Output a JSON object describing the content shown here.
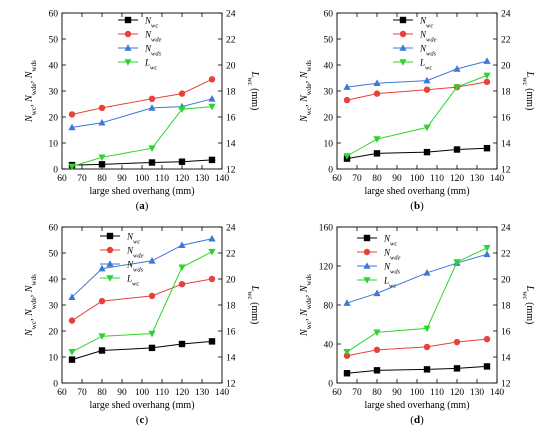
{
  "chart_data": [
    {
      "type": "line",
      "panel_label": "(a)",
      "xlabel": "large shed overhang (mm)",
      "ylabel": "N_wc, N_wde, N_wds",
      "y2label": "L_wc (mm)",
      "x": [
        65,
        80,
        105,
        120,
        135
      ],
      "xlim": [
        60,
        140
      ],
      "xticks": [
        60,
        70,
        80,
        90,
        100,
        110,
        120,
        130,
        140
      ],
      "ylim": [
        0,
        60
      ],
      "yticks": [
        0,
        10,
        20,
        30,
        40,
        50,
        60
      ],
      "y2lim": [
        12,
        24
      ],
      "y2ticks": [
        12,
        14,
        16,
        18,
        20,
        22,
        24
      ],
      "legend_placement": "top-right",
      "series": [
        {
          "name": "N_wc",
          "axis": "left",
          "color": "#000000",
          "marker": "square",
          "values": [
            1.5,
            1.8,
            2.5,
            2.8,
            3.5
          ]
        },
        {
          "name": "N_wde",
          "axis": "left",
          "color": "#e8413a",
          "marker": "circle",
          "values": [
            21,
            23.5,
            27,
            29,
            34.5
          ]
        },
        {
          "name": "N_wds",
          "axis": "left",
          "color": "#3b78d8",
          "marker": "triangle",
          "values": [
            16,
            17.8,
            23.5,
            24,
            27
          ]
        },
        {
          "name": "L_wc",
          "axis": "right",
          "color": "#2bd62b",
          "marker": "triangle-down",
          "values": [
            12.2,
            12.9,
            13.6,
            16.6,
            16.8
          ]
        }
      ]
    },
    {
      "type": "line",
      "panel_label": "(b)",
      "xlabel": "large shed overhang (mm)",
      "ylabel": "N_wc, N_wde, N_wds",
      "y2label": "L_wc (mm)",
      "x": [
        65,
        80,
        105,
        120,
        135
      ],
      "xlim": [
        60,
        140
      ],
      "xticks": [
        60,
        70,
        80,
        90,
        100,
        110,
        120,
        130,
        140
      ],
      "ylim": [
        0,
        60
      ],
      "yticks": [
        0,
        10,
        20,
        30,
        40,
        50,
        60
      ],
      "y2lim": [
        12,
        24
      ],
      "y2ticks": [
        12,
        14,
        16,
        18,
        20,
        22,
        24
      ],
      "legend_placement": "top-right",
      "series": [
        {
          "name": "N_wc",
          "axis": "left",
          "color": "#000000",
          "marker": "square",
          "values": [
            4,
            6,
            6.5,
            7.5,
            8
          ]
        },
        {
          "name": "N_wde",
          "axis": "left",
          "color": "#e8413a",
          "marker": "circle",
          "values": [
            26.5,
            29,
            30.5,
            31.5,
            33.5
          ]
        },
        {
          "name": "N_wds",
          "axis": "left",
          "color": "#3b78d8",
          "marker": "triangle",
          "values": [
            31.5,
            33,
            34,
            38.5,
            41.5
          ]
        },
        {
          "name": "L_wc",
          "axis": "right",
          "color": "#2bd62b",
          "marker": "triangle-down",
          "values": [
            13.0,
            14.3,
            15.2,
            18.3,
            19.2
          ]
        }
      ]
    },
    {
      "type": "line",
      "panel_label": "(c)",
      "xlabel": "large shed overhang (mm)",
      "ylabel": "N_wc, N_wde, N_wds",
      "y2label": "L_wc (mm)",
      "x": [
        65,
        80,
        105,
        120,
        135
      ],
      "xlim": [
        60,
        140
      ],
      "xticks": [
        60,
        70,
        80,
        90,
        100,
        110,
        120,
        130,
        140
      ],
      "ylim": [
        0,
        60
      ],
      "yticks": [
        0,
        10,
        20,
        30,
        40,
        50,
        60
      ],
      "y2lim": [
        12,
        24
      ],
      "y2ticks": [
        12,
        14,
        16,
        18,
        20,
        22,
        24
      ],
      "legend_placement": "top-center",
      "series": [
        {
          "name": "N_wc",
          "axis": "left",
          "color": "#000000",
          "marker": "square",
          "values": [
            9,
            12.5,
            13.5,
            15,
            16
          ]
        },
        {
          "name": "N_wde",
          "axis": "left",
          "color": "#e8413a",
          "marker": "circle",
          "values": [
            24,
            31.5,
            33.5,
            38,
            40
          ]
        },
        {
          "name": "N_wds",
          "axis": "left",
          "color": "#3b78d8",
          "marker": "triangle",
          "values": [
            33,
            44,
            47,
            53,
            55.5
          ]
        },
        {
          "name": "L_wc",
          "axis": "right",
          "color": "#2bd62b",
          "marker": "triangle-down",
          "values": [
            14.4,
            15.6,
            15.8,
            20.9,
            22.1
          ]
        }
      ]
    },
    {
      "type": "line",
      "panel_label": "(d)",
      "xlabel": "large shed overhang (mm)",
      "ylabel": "N_wc, N_wde, N_wds",
      "y2label": "L_wc (mm)",
      "x": [
        65,
        80,
        105,
        120,
        135
      ],
      "xlim": [
        60,
        140
      ],
      "xticks": [
        60,
        70,
        80,
        90,
        100,
        110,
        120,
        130,
        140
      ],
      "ylim": [
        0,
        160
      ],
      "yticks": [
        0,
        40,
        80,
        120,
        160
      ],
      "y2lim": [
        12,
        24
      ],
      "y2ticks": [
        12,
        14,
        16,
        18,
        20,
        22,
        24
      ],
      "legend_placement": "top-left",
      "series": [
        {
          "name": "N_wc",
          "axis": "left",
          "color": "#000000",
          "marker": "square",
          "values": [
            10,
            13,
            14,
            15,
            17
          ]
        },
        {
          "name": "N_wde",
          "axis": "left",
          "color": "#e8413a",
          "marker": "circle",
          "values": [
            28,
            34,
            37,
            42,
            45
          ]
        },
        {
          "name": "N_wds",
          "axis": "left",
          "color": "#3b78d8",
          "marker": "triangle",
          "values": [
            82,
            92,
            113,
            123,
            132
          ]
        },
        {
          "name": "L_wc",
          "axis": "right",
          "color": "#2bd62b",
          "marker": "triangle-down",
          "values": [
            14.4,
            15.9,
            16.2,
            21.3,
            22.4
          ]
        }
      ]
    }
  ]
}
